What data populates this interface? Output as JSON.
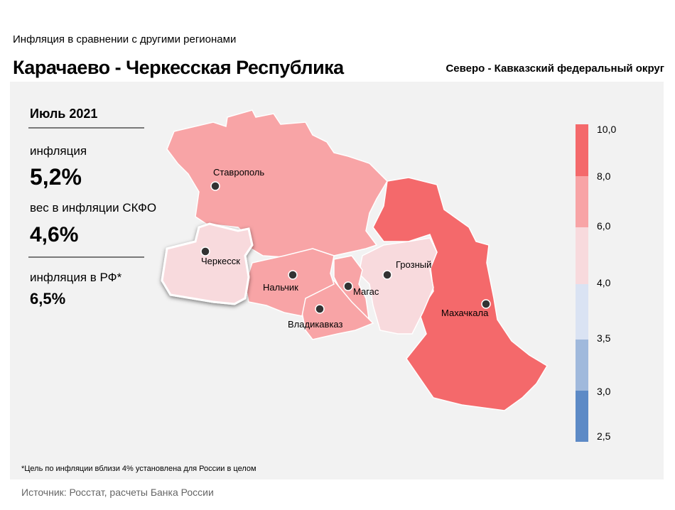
{
  "header": {
    "subtitle": "Инфляция  в сравнении  с другими  регионами",
    "title": "Карачаево - Черкесская Республика",
    "district": "Северо - Кавказский федеральный округ"
  },
  "panel": {
    "period": "Июль 2021",
    "inflation_label": "инфляция",
    "inflation_value": "5,2%",
    "weight_label": "вес в инфляции  СКФО",
    "weight_value": "4,6%",
    "rf_label": "инфляция  в РФ*",
    "rf_value": "6,5%"
  },
  "map": {
    "cities": [
      "Ставрополь",
      "Черкесск",
      "Нальчик",
      "Магас",
      "Владикавказ",
      "Грозный",
      "Махачкала"
    ]
  },
  "legend": {
    "ticks": [
      "10,0",
      "8,0",
      "6,0",
      "4,0",
      "3,5",
      "3,0",
      "2,5"
    ],
    "colors": [
      "#f4696b",
      "#f8a4a6",
      "#f8dadd",
      "#dae3f3",
      "#a0b9dc",
      "#5d8ac6"
    ]
  },
  "footnote": "*Цель по инфляции вблизи 4% установлена для России в целом",
  "source": "Источник: Росстат, расчеты Банка России"
}
